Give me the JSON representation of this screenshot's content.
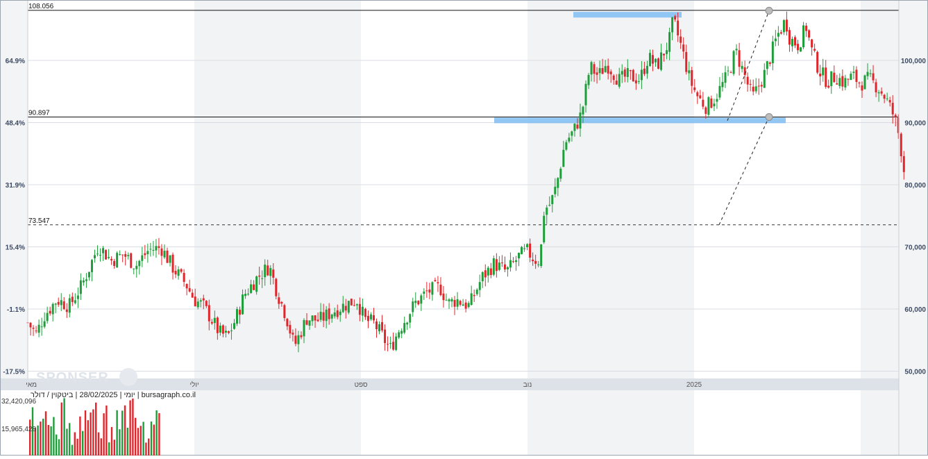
{
  "chart_data": {
    "type": "candlestick",
    "instrument": "ביטקוין / דולר",
    "footer_text": "יומי | 28/02/2025 | ביטקוין / דולר | bursagraph.co.il",
    "watermark": "SPONSER",
    "y_right": {
      "ylim": [
        49800,
        108700
      ],
      "tick_labels": [
        "100,000",
        "90,000",
        "80,000",
        "70,000",
        "60,000",
        "50,000"
      ],
      "tick_values": [
        100000,
        90000,
        80000,
        70000,
        60000,
        50000
      ]
    },
    "y_left_percent": {
      "tick_labels": [
        "64.9%",
        "48.4%",
        "31.9%",
        "15.4%",
        "-1.1%",
        "-17.5%"
      ],
      "tick_values": [
        100000,
        90000,
        80000,
        70000,
        60000,
        50000
      ]
    },
    "x_labels": [
      {
        "text": "מאי",
        "month": 0.0
      },
      {
        "text": "יולי",
        "month": 2.0
      },
      {
        "text": "ספט",
        "month": 4.0
      },
      {
        "text": "נוב",
        "month": 6.0
      },
      {
        "text": "2025",
        "month": 8.0
      }
    ],
    "shaded_month_bands": [
      [
        2.0,
        4.0
      ],
      [
        6.0,
        8.0
      ],
      [
        10.0,
        10.55
      ]
    ],
    "horizontal_levels": [
      {
        "label": "108.056",
        "value": 108056,
        "style": "solid"
      },
      {
        "label": "90.897",
        "value": 90897,
        "style": "solid"
      },
      {
        "label": "73.547",
        "value": 73547,
        "style": "dashed"
      }
    ],
    "zones": [
      {
        "from_month": 6.55,
        "to_month": 7.85,
        "value_low": 106900,
        "value_high": 107800,
        "color": "#7fbdf2"
      },
      {
        "from_month": 5.6,
        "to_month": 9.1,
        "value_low": 89900,
        "value_high": 90800,
        "color": "#7fbdf2"
      }
    ],
    "dashed_lines": [
      {
        "from": {
          "month": 8.4,
          "value": 90300
        },
        "to": {
          "month": 8.9,
          "value": 108000
        }
      },
      {
        "from": {
          "month": 8.3,
          "value": 73547
        },
        "to": {
          "month": 8.9,
          "value": 90897
        }
      }
    ],
    "markers": [
      {
        "month": 8.9,
        "value": 108000
      },
      {
        "month": 8.9,
        "value": 90897
      }
    ],
    "up_color": "#1e9e3a",
    "down_color": "#e0262b",
    "close_path": [
      [
        0.0,
        57800
      ],
      [
        0.1,
        56000
      ],
      [
        0.2,
        59000
      ],
      [
        0.35,
        61500
      ],
      [
        0.5,
        60500
      ],
      [
        0.65,
        63800
      ],
      [
        0.75,
        67000
      ],
      [
        0.85,
        70300
      ],
      [
        1.0,
        67800
      ],
      [
        1.15,
        68800
      ],
      [
        1.3,
        67000
      ],
      [
        1.45,
        69500
      ],
      [
        1.6,
        69900
      ],
      [
        1.75,
        66500
      ],
      [
        1.9,
        64000
      ],
      [
        2.0,
        61500
      ],
      [
        2.1,
        60600
      ],
      [
        2.2,
        58500
      ],
      [
        2.3,
        56200
      ],
      [
        2.4,
        55500
      ],
      [
        2.5,
        58500
      ],
      [
        2.6,
        62300
      ],
      [
        2.75,
        65000
      ],
      [
        2.9,
        66900
      ],
      [
        3.0,
        62500
      ],
      [
        3.1,
        59000
      ],
      [
        3.2,
        54000
      ],
      [
        3.35,
        58500
      ],
      [
        3.5,
        58200
      ],
      [
        3.65,
        59500
      ],
      [
        3.8,
        60600
      ],
      [
        3.95,
        61500
      ],
      [
        4.05,
        58200
      ],
      [
        4.15,
        57800
      ],
      [
        4.25,
        55800
      ],
      [
        4.35,
        53500
      ],
      [
        4.45,
        56500
      ],
      [
        4.55,
        58800
      ],
      [
        4.65,
        60900
      ],
      [
        4.8,
        62800
      ],
      [
        4.95,
        63500
      ],
      [
        5.05,
        60900
      ],
      [
        5.15,
        61500
      ],
      [
        5.3,
        60500
      ],
      [
        5.45,
        65000
      ],
      [
        5.6,
        67300
      ],
      [
        5.75,
        66000
      ],
      [
        5.9,
        68500
      ],
      [
        6.0,
        69300
      ],
      [
        6.08,
        68000
      ],
      [
        6.15,
        67800
      ],
      [
        6.2,
        76000
      ],
      [
        6.28,
        77000
      ],
      [
        6.35,
        80000
      ],
      [
        6.45,
        86800
      ],
      [
        6.55,
        88500
      ],
      [
        6.65,
        91500
      ],
      [
        6.75,
        99000
      ],
      [
        6.85,
        97500
      ],
      [
        6.95,
        99500
      ],
      [
        7.1,
        96800
      ],
      [
        7.2,
        97500
      ],
      [
        7.35,
        97000
      ],
      [
        7.45,
        100500
      ],
      [
        7.55,
        99000
      ],
      [
        7.7,
        103000
      ],
      [
        7.75,
        106500
      ],
      [
        7.85,
        102000
      ],
      [
        7.95,
        96800
      ],
      [
        8.05,
        94000
      ],
      [
        8.15,
        92500
      ],
      [
        8.25,
        94000
      ],
      [
        8.4,
        97500
      ],
      [
        8.5,
        101500
      ],
      [
        8.6,
        97800
      ],
      [
        8.7,
        94000
      ],
      [
        8.75,
        95200
      ],
      [
        8.85,
        98000
      ],
      [
        9.0,
        104000
      ],
      [
        9.1,
        106500
      ],
      [
        9.15,
        103500
      ],
      [
        9.25,
        102500
      ],
      [
        9.35,
        105500
      ],
      [
        9.4,
        102000
      ],
      [
        9.5,
        98500
      ],
      [
        9.6,
        96600
      ],
      [
        9.7,
        97500
      ],
      [
        9.8,
        96400
      ],
      [
        9.9,
        97500
      ],
      [
        10.0,
        96300
      ],
      [
        10.1,
        97000
      ],
      [
        10.2,
        95800
      ],
      [
        10.3,
        94000
      ],
      [
        10.4,
        91000
      ],
      [
        10.45,
        88500
      ],
      [
        10.5,
        84500
      ],
      [
        10.55,
        79000
      ]
    ],
    "volume_ticks": [
      {
        "label": "32,420,096",
        "value": 32420096
      },
      {
        "label": "15,965,428",
        "value": 15965428
      }
    ]
  }
}
